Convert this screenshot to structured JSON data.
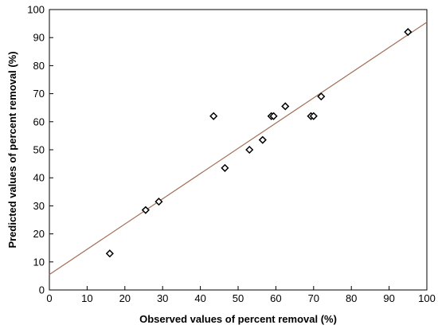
{
  "chart_data": {
    "type": "scatter",
    "title": "",
    "xlabel": "Observed values of percent removal (%)",
    "ylabel": "Predicted values of percent removal (%)",
    "xlim": [
      0,
      100
    ],
    "ylim": [
      0,
      100
    ],
    "xticks": [
      0,
      10,
      20,
      30,
      40,
      50,
      60,
      70,
      80,
      90,
      100
    ],
    "yticks": [
      0,
      10,
      20,
      30,
      40,
      50,
      60,
      70,
      80,
      90,
      100
    ],
    "grid": false,
    "legend": "none",
    "marker": "diamond",
    "marker_color": "#000000",
    "points": [
      {
        "x": 16,
        "y": 13
      },
      {
        "x": 25.5,
        "y": 28.5
      },
      {
        "x": 29,
        "y": 31.5
      },
      {
        "x": 43.5,
        "y": 62
      },
      {
        "x": 46.5,
        "y": 43.5
      },
      {
        "x": 53,
        "y": 50
      },
      {
        "x": 56.5,
        "y": 53.5
      },
      {
        "x": 58.8,
        "y": 62
      },
      {
        "x": 59.4,
        "y": 62
      },
      {
        "x": 62.5,
        "y": 65.5
      },
      {
        "x": 69.3,
        "y": 62
      },
      {
        "x": 70,
        "y": 62
      },
      {
        "x": 72,
        "y": 69
      },
      {
        "x": 95,
        "y": 92
      }
    ],
    "fit_line": {
      "x": [
        0,
        100
      ],
      "y": [
        5.5,
        95.5
      ],
      "color": "#a0705a"
    }
  }
}
